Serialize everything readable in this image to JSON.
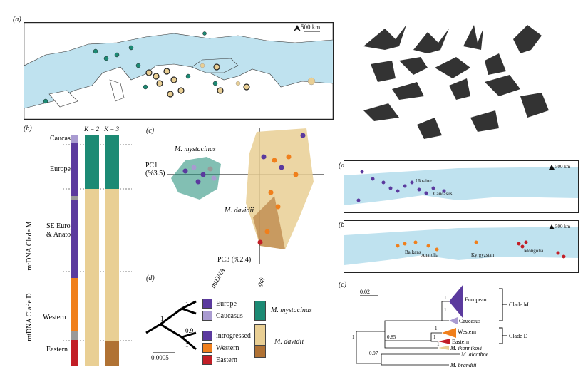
{
  "panel_labels": {
    "a": "(a)",
    "b": "(b)",
    "c": "(c)",
    "d": "(d)"
  },
  "small_panel_labels": {
    "a": "(a)",
    "b": "(b)",
    "c": "(c)"
  },
  "map_main": {
    "scale": "500 km"
  },
  "map_small_a": {
    "scale": "500 km",
    "labels": [
      "Ukraine",
      "Caucasus"
    ]
  },
  "map_small_b": {
    "scale": "500 km",
    "labels": [
      "Balkans",
      "Anatolia",
      "Kyrgyzstan",
      "Mongolia"
    ]
  },
  "structure_plot": {
    "k_labels": [
      "K = 2",
      "K = 3"
    ],
    "rows": [
      "Caucasus",
      "Europe",
      "SE Europe",
      "& Anatolia",
      "Western",
      "Eastern"
    ],
    "clade_labels": [
      "mtDNA Clade M",
      "mtDNA Clade D"
    ]
  },
  "pca": {
    "pc1": "PC1",
    "pc1_pct": "(%3.5)",
    "pc3": "PC3 (%2.4)",
    "species1": "M. mystacinus",
    "species2": "M. davidii"
  },
  "tree_d": {
    "header_mt": "mtDNA",
    "header_gdi": "gdi",
    "legend": [
      "Europe",
      "Caucasus",
      "introgressed",
      "Western",
      "Eastern"
    ],
    "legend_colors": [
      "#5b3a9e",
      "#a99bd1",
      "#5b3a9e",
      "#f07f1b",
      "#c21e26"
    ],
    "species": [
      "M. mystacinus",
      "M. davidii"
    ],
    "support": [
      "1",
      "1",
      "0.9",
      "1"
    ],
    "scale": "0.0005"
  },
  "tree_c": {
    "scale": "0.02",
    "tips": [
      "European",
      "Caucasus",
      "Western",
      "Eastern",
      "M. ikonnikovi",
      "M. alcathoe",
      "M. brandtii"
    ],
    "clades": [
      "Clade M",
      "Clade D"
    ],
    "support": [
      "1",
      "1",
      "1",
      "1",
      "0.85",
      "1",
      "0.97",
      "1"
    ]
  },
  "colors": {
    "green": "#1c8a74",
    "tan": "#e9cf94",
    "purple": "#5b3a9e",
    "lilac": "#a99bd1",
    "orange": "#f07f1b",
    "red": "#c21e26",
    "brown": "#b07234"
  }
}
